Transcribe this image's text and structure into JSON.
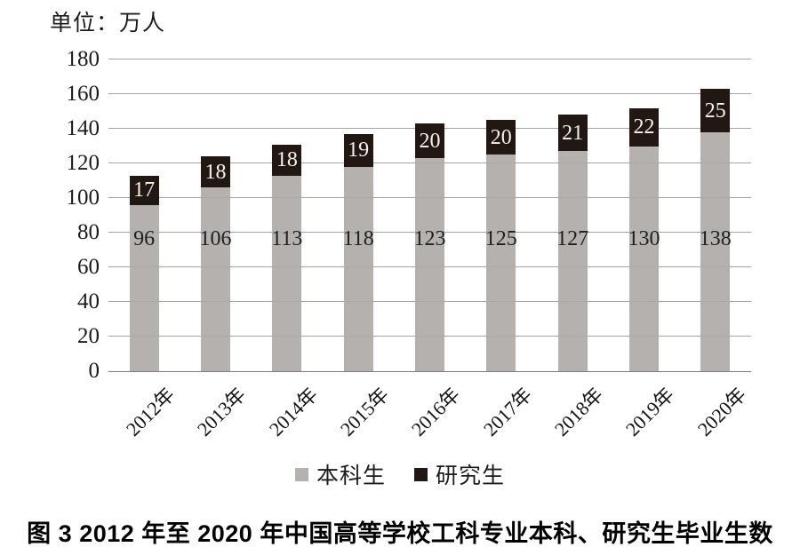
{
  "unit_label": "单位：万人",
  "caption": "图 3  2012 年至 2020 年中国高等学校工科专业本科、研究生毕业生数",
  "colors": {
    "undergrad_bar": "#b4b1ae",
    "grad_bar": "#211813",
    "gridline": "#a4a4a4",
    "axis_line": "#7e7e7e",
    "grad_label_text": "#f7f3ea",
    "text": "#1c1c1c"
  },
  "legend": {
    "items": [
      {
        "label": "本科生",
        "color": "#b4b1ae"
      },
      {
        "label": "研究生",
        "color": "#211813"
      }
    ]
  },
  "chart_data": {
    "type": "bar",
    "stacked": true,
    "title": "图 3 2012 年至 2020 年中国高等学校工科专业本科、研究生毕业生数",
    "unit": "万人",
    "categories": [
      "2012年",
      "2013年",
      "2014年",
      "2015年",
      "2016年",
      "2017年",
      "2018年",
      "2019年",
      "2020年"
    ],
    "series": [
      {
        "name": "本科生",
        "values": [
          96,
          106,
          113,
          118,
          123,
          125,
          127,
          130,
          138
        ]
      },
      {
        "name": "研究生",
        "values": [
          17,
          18,
          18,
          19,
          20,
          20,
          21,
          22,
          25
        ]
      }
    ],
    "ylim": [
      0,
      180
    ],
    "yticks": [
      0,
      20,
      40,
      60,
      80,
      100,
      120,
      140,
      160,
      180
    ],
    "grid": true,
    "legend_position": "bottom",
    "xlabel_rotation": -45
  }
}
